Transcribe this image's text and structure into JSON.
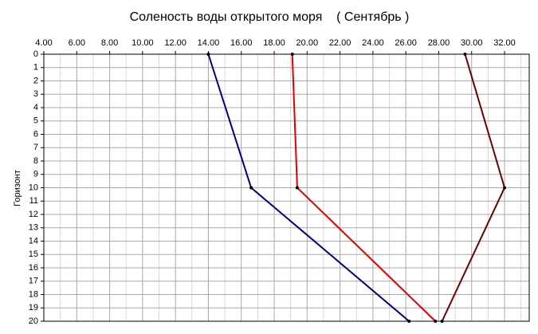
{
  "chart_data": {
    "type": "line",
    "title": "Соленость воды открытого моря    ( Сентябрь )",
    "ylabel": "Горизонт",
    "y": [
      0,
      10,
      20
    ],
    "series": [
      {
        "color": "#000080",
        "values": [
          14.0,
          16.6,
          26.2
        ]
      },
      {
        "color": "#e00000",
        "values": [
          19.1,
          19.4,
          27.8
        ]
      },
      {
        "color": "#6b0000",
        "values": [
          29.6,
          32.0,
          28.2
        ]
      }
    ],
    "xlim": [
      4,
      33.5
    ],
    "xticks": [
      {
        "value": 4,
        "label": "4.00"
      },
      {
        "value": 6,
        "label": "6.00"
      },
      {
        "value": 8,
        "label": "8.00"
      },
      {
        "value": 10,
        "label": "10.00"
      },
      {
        "value": 12,
        "label": "12.00"
      },
      {
        "value": 14,
        "label": "14.00"
      },
      {
        "value": 16,
        "label": "16.00"
      },
      {
        "value": 18,
        "label": "18.00"
      },
      {
        "value": 20,
        "label": "20.00"
      },
      {
        "value": 22,
        "label": "22.00"
      },
      {
        "value": 24,
        "label": "24.00"
      },
      {
        "value": 26,
        "label": "26.00"
      },
      {
        "value": 28,
        "label": "28.00"
      },
      {
        "value": 30,
        "label": "30.00"
      },
      {
        "value": 32,
        "label": "32.00"
      }
    ],
    "ylim": [
      0,
      20
    ],
    "yticks": [
      0,
      1,
      2,
      3,
      4,
      5,
      6,
      7,
      8,
      9,
      10,
      11,
      12,
      13,
      14,
      15,
      16,
      17,
      18,
      19,
      20
    ],
    "y_inverted": true,
    "grid": true
  }
}
